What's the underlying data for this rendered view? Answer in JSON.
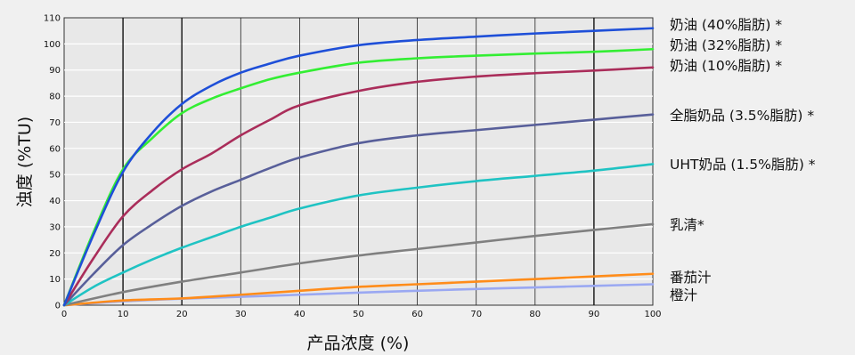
{
  "chart_data": {
    "type": "line",
    "title": "",
    "xlabel": "产品浓度 (%)",
    "ylabel": "浊度 (%TU)",
    "xlim": [
      0,
      100
    ],
    "ylim": [
      0,
      110
    ],
    "x_ticks": [
      0,
      10,
      20,
      30,
      40,
      50,
      60,
      70,
      80,
      90,
      100
    ],
    "y_ticks": [
      0,
      10,
      20,
      30,
      40,
      50,
      60,
      70,
      80,
      90,
      100,
      110
    ],
    "grid": true,
    "legend_placement": "right",
    "series": [
      {
        "name": "奶油 (40%脂肪) *",
        "color": "#1e4fd8",
        "points": [
          [
            0,
            0
          ],
          [
            5,
            27
          ],
          [
            10,
            51
          ],
          [
            15,
            66
          ],
          [
            20,
            77
          ],
          [
            25,
            84
          ],
          [
            30,
            89
          ],
          [
            35,
            92.5
          ],
          [
            40,
            95.5
          ],
          [
            50,
            99.5
          ],
          [
            60,
            101.5
          ],
          [
            70,
            102.8
          ],
          [
            80,
            104
          ],
          [
            90,
            105
          ],
          [
            100,
            106
          ]
        ]
      },
      {
        "name": "奶油 (32%脂肪) *",
        "color": "#33ee33",
        "points": [
          [
            0,
            0
          ],
          [
            5,
            28
          ],
          [
            10,
            52
          ],
          [
            15,
            64
          ],
          [
            20,
            73.5
          ],
          [
            25,
            79
          ],
          [
            30,
            83
          ],
          [
            35,
            86.5
          ],
          [
            40,
            89
          ],
          [
            50,
            92.8
          ],
          [
            60,
            94.5
          ],
          [
            70,
            95.5
          ],
          [
            80,
            96.3
          ],
          [
            90,
            97
          ],
          [
            100,
            98
          ]
        ]
      },
      {
        "name": "奶油 (10%脂肪) *",
        "color": "#aa2d5a",
        "points": [
          [
            0,
            0
          ],
          [
            5,
            18
          ],
          [
            10,
            34
          ],
          [
            15,
            44
          ],
          [
            20,
            52
          ],
          [
            25,
            58
          ],
          [
            30,
            65
          ],
          [
            35,
            71
          ],
          [
            40,
            76.5
          ],
          [
            50,
            82
          ],
          [
            60,
            85.5
          ],
          [
            70,
            87.5
          ],
          [
            80,
            88.8
          ],
          [
            90,
            89.8
          ],
          [
            100,
            91
          ]
        ]
      },
      {
        "name": "全脂奶品 (3.5%脂肪) *",
        "color": "#585f9a",
        "points": [
          [
            0,
            0
          ],
          [
            5,
            12
          ],
          [
            10,
            23
          ],
          [
            15,
            31
          ],
          [
            20,
            38
          ],
          [
            25,
            43.5
          ],
          [
            30,
            48
          ],
          [
            35,
            52.5
          ],
          [
            40,
            56.5
          ],
          [
            50,
            62
          ],
          [
            60,
            65
          ],
          [
            70,
            67
          ],
          [
            80,
            69
          ],
          [
            90,
            71
          ],
          [
            100,
            73
          ]
        ]
      },
      {
        "name": "UHT奶品 (1.5%脂肪) *",
        "color": "#1fc3c3",
        "points": [
          [
            0,
            0
          ],
          [
            5,
            7
          ],
          [
            10,
            12.5
          ],
          [
            15,
            17.5
          ],
          [
            20,
            22
          ],
          [
            25,
            26
          ],
          [
            30,
            30
          ],
          [
            35,
            33.5
          ],
          [
            40,
            37
          ],
          [
            50,
            42
          ],
          [
            60,
            45
          ],
          [
            70,
            47.5
          ],
          [
            80,
            49.5
          ],
          [
            90,
            51.5
          ],
          [
            100,
            54
          ]
        ]
      },
      {
        "name": "乳清*",
        "color": "#808080",
        "points": [
          [
            0,
            0
          ],
          [
            10,
            5
          ],
          [
            20,
            9
          ],
          [
            30,
            12.5
          ],
          [
            40,
            16
          ],
          [
            50,
            19
          ],
          [
            60,
            21.5
          ],
          [
            70,
            24
          ],
          [
            80,
            26.5
          ],
          [
            90,
            28.8
          ],
          [
            100,
            31
          ]
        ]
      },
      {
        "name": "番茄汁",
        "color": "#ff8c1a",
        "points": [
          [
            0,
            0
          ],
          [
            10,
            1.8
          ],
          [
            20,
            2.6
          ],
          [
            30,
            4
          ],
          [
            40,
            5.5
          ],
          [
            50,
            7
          ],
          [
            60,
            8
          ],
          [
            70,
            9
          ],
          [
            80,
            10
          ],
          [
            90,
            11
          ],
          [
            100,
            12
          ]
        ]
      },
      {
        "name": "橙汁",
        "color": "#9aa8f2",
        "points": [
          [
            0,
            0
          ],
          [
            10,
            1.5
          ],
          [
            20,
            2.5
          ],
          [
            30,
            3.2
          ],
          [
            40,
            4
          ],
          [
            50,
            4.8
          ],
          [
            60,
            5.5
          ],
          [
            70,
            6.2
          ],
          [
            80,
            6.8
          ],
          [
            90,
            7.4
          ],
          [
            100,
            8
          ]
        ]
      }
    ]
  }
}
